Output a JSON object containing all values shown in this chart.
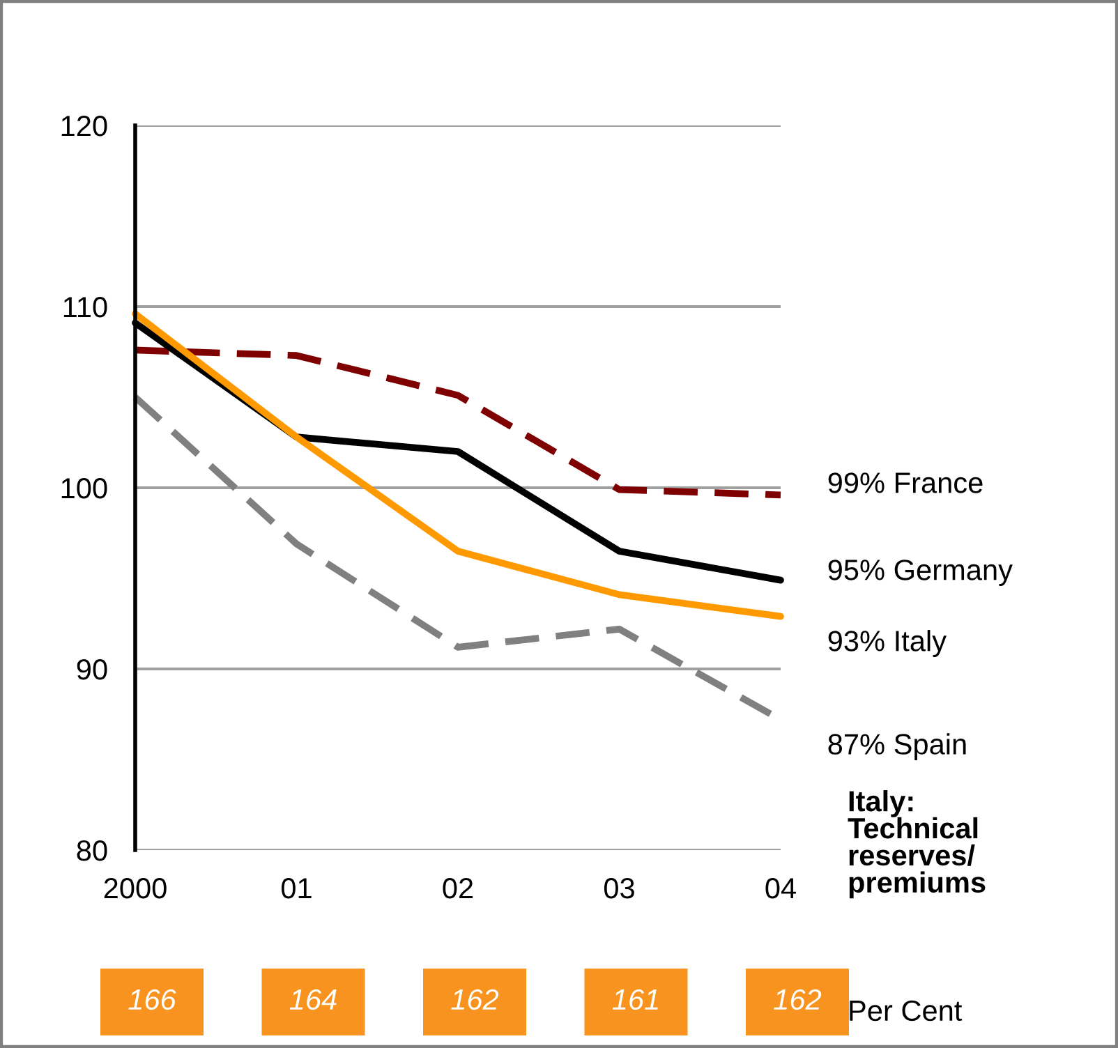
{
  "chart_data": {
    "type": "line",
    "categories": [
      "2000",
      "01",
      "02",
      "03",
      "04"
    ],
    "series": [
      {
        "name": "99% France",
        "color": "#7f0000",
        "line_style": "dashed",
        "values": [
          107.6,
          107.3,
          105.1,
          99.9,
          99.6
        ]
      },
      {
        "name": "95% Germany",
        "color": "#000000",
        "line_style": "solid",
        "values": [
          109.1,
          102.8,
          102.0,
          96.5,
          94.9
        ]
      },
      {
        "name": "93% Italy",
        "color": "#ff9900",
        "line_style": "solid",
        "values": [
          109.6,
          102.8,
          96.5,
          94.1,
          92.9
        ]
      },
      {
        "name": "87% Spain",
        "color": "#808080",
        "line_style": "dashed",
        "values": [
          105.0,
          96.9,
          91.2,
          92.2,
          87.2
        ]
      }
    ],
    "ylim": [
      80,
      120
    ],
    "yticks": [
      80,
      90,
      100,
      110,
      120
    ],
    "grid": "y",
    "legend": false,
    "marker": "none",
    "annotations": [
      "Italy:\nTechnical\nreserves/\npremiums",
      "Per Cent",
      "166",
      "164",
      "162",
      "161",
      "162"
    ]
  }
}
